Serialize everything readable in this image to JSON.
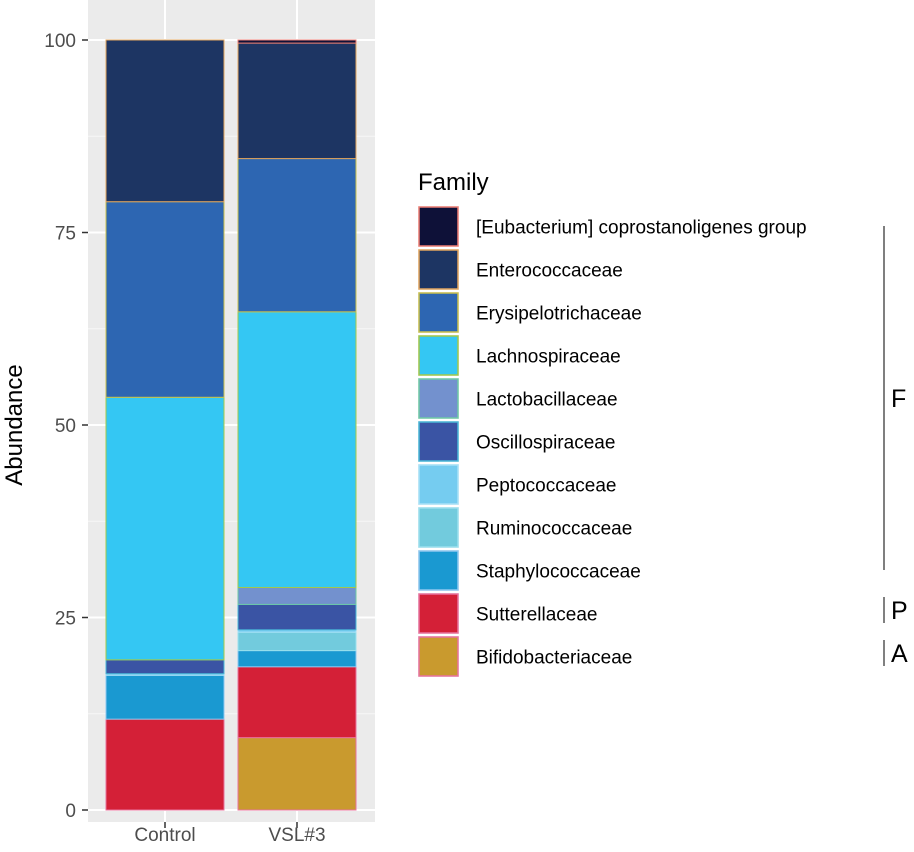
{
  "chart_data": {
    "type": "bar",
    "stacked": true,
    "title": "",
    "xlabel": "",
    "ylabel": "Abundance",
    "ylim": [
      0,
      100
    ],
    "yticks": [
      0,
      25,
      50,
      75,
      100
    ],
    "categories": [
      "Control",
      "VSL#3"
    ],
    "legend_title": "Family",
    "legend_position": "right",
    "grid": true,
    "series": [
      {
        "name": "Bifidobacteriaceae",
        "color": "#C99A2E",
        "border": "#E8739E",
        "values": [
          0,
          9.4
        ]
      },
      {
        "name": "Sutterellaceae",
        "color": "#D42037",
        "border": "#E8739E",
        "values": [
          11.8,
          9.2
        ]
      },
      {
        "name": "Staphylococcaceae",
        "color": "#1A99D1",
        "border": "#8FC8F0",
        "values": [
          5.7,
          2.1
        ]
      },
      {
        "name": "Ruminococcaceae",
        "color": "#72CBDD",
        "border": "#9BE0EE",
        "values": [
          0,
          2.4
        ]
      },
      {
        "name": "Peptococcaceae",
        "color": "#75CCF0",
        "border": "#A8E2F8",
        "values": [
          0.2,
          0.3
        ]
      },
      {
        "name": "Oscillospiraceae",
        "color": "#3A54A4",
        "border": "#49B8D8",
        "values": [
          1.8,
          3.3
        ]
      },
      {
        "name": "Lactobacillaceae",
        "color": "#7391CE",
        "border": "#6FC9A6",
        "values": [
          0,
          2.2
        ]
      },
      {
        "name": "Lachnospiraceae",
        "color": "#34C7F3",
        "border": "#A2C84A",
        "values": [
          34.1,
          35.8
        ]
      },
      {
        "name": "Erysipelotrichaceae",
        "color": "#2D66B2",
        "border": "#C9C04C",
        "values": [
          25.4,
          19.9
        ]
      },
      {
        "name": "Enterococcaceae",
        "color": "#1D3563",
        "border": "#E2A55E",
        "values": [
          21.0,
          15.0
        ]
      },
      {
        "name": "[Eubacterium] coprostanoligenes group",
        "color": "#0E1138",
        "border": "#EE7E74",
        "values": [
          0,
          0.4
        ]
      }
    ],
    "legend_order": [
      "[Eubacterium] coprostanoligenes group",
      "Enterococcaceae",
      "Erysipelotrichaceae",
      "Lachnospiraceae",
      "Lactobacillaceae",
      "Oscillospiraceae",
      "Peptococcaceae",
      "Ruminococcaceae",
      "Staphylococcaceae",
      "Sutterellaceae",
      "Bifidobacteriaceae"
    ],
    "groups": [
      {
        "label": "F",
        "from": "[Eubacterium] coprostanoligenes group",
        "to": "Staphylococcaceae"
      },
      {
        "label": "P",
        "from": "Sutterellaceae",
        "to": "Sutterellaceae"
      },
      {
        "label": "A",
        "from": "Bifidobacteriaceae",
        "to": "Bifidobacteriaceae"
      }
    ]
  }
}
